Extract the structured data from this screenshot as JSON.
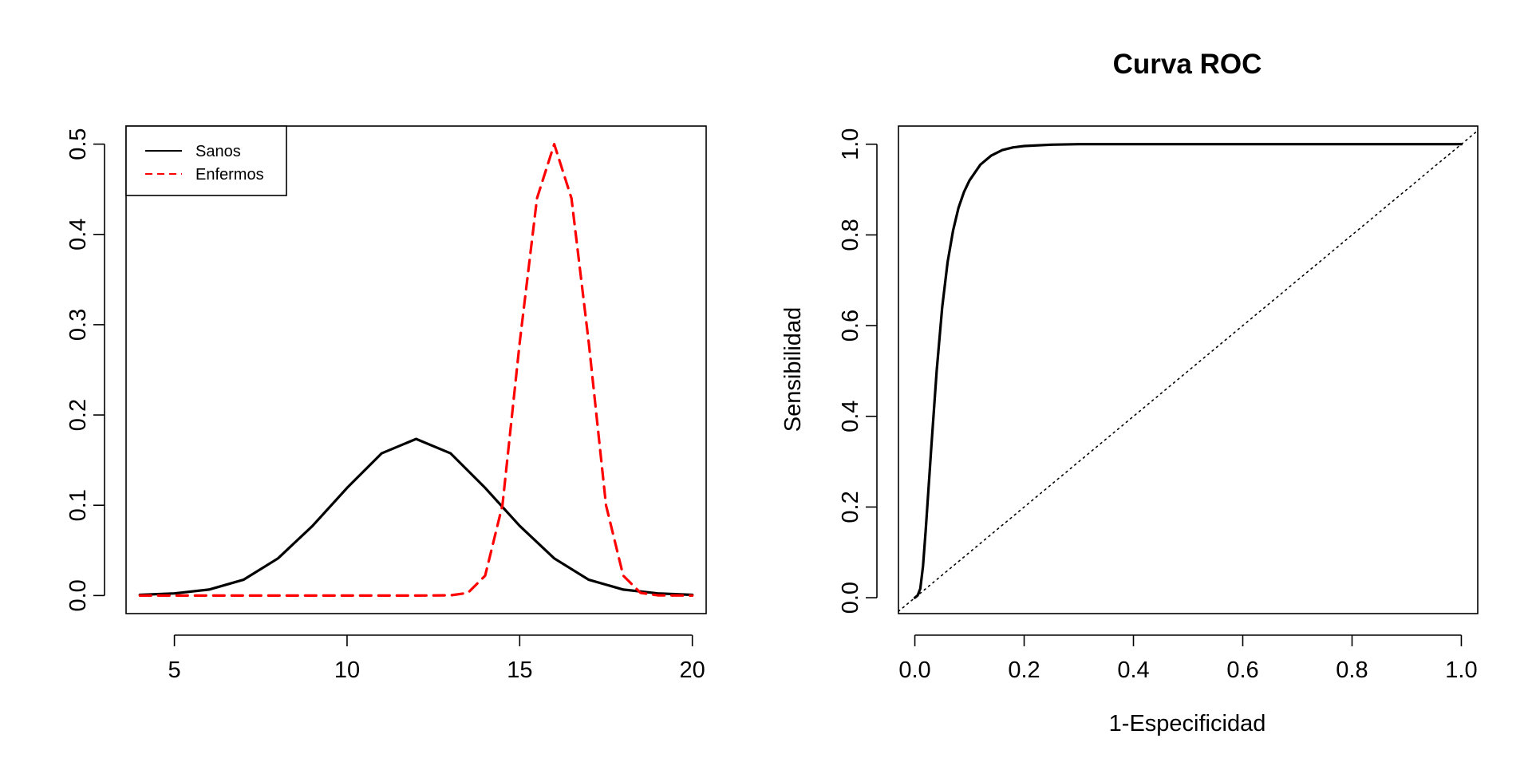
{
  "chart_data": [
    {
      "type": "line",
      "title": "",
      "xlabel": "",
      "ylabel": "",
      "xlim": [
        3.6,
        20.4
      ],
      "ylim": [
        -0.02,
        0.52
      ],
      "x_ticks": [
        5,
        10,
        15,
        20
      ],
      "x_tick_labels": [
        "5",
        "10",
        "15",
        "20"
      ],
      "y_ticks": [
        0,
        0.1,
        0.2,
        0.3,
        0.4,
        0.5
      ],
      "y_tick_labels": [
        "0.0",
        "0.1",
        "0.2",
        "0.3",
        "0.4",
        "0.5"
      ],
      "grid": false,
      "legend": {
        "position": "top-left",
        "entries": [
          "Sanos",
          "Enfermos"
        ]
      },
      "series": [
        {
          "name": "Sanos",
          "color": "#000000",
          "line_style": "solid",
          "x": [
            4,
            5,
            6,
            7,
            8,
            9,
            10,
            11,
            12,
            13,
            14,
            15,
            16,
            17,
            18,
            19,
            20
          ],
          "y": [
            0.0008,
            0.0024,
            0.0066,
            0.0175,
            0.0412,
            0.0771,
            0.1193,
            0.1575,
            0.1735,
            0.1575,
            0.1193,
            0.0771,
            0.0412,
            0.0175,
            0.0066,
            0.0024,
            0.0008
          ]
        },
        {
          "name": "Enfermos",
          "color": "#ff0000",
          "line_style": "dashed",
          "x": [
            4,
            12,
            13,
            13.5,
            14,
            14.5,
            15,
            15.5,
            16,
            16.5,
            17,
            17.5,
            18,
            18.5,
            19,
            20
          ],
          "y": [
            0,
            0,
            0.0002,
            0.003,
            0.022,
            0.1,
            0.28,
            0.44,
            0.5,
            0.44,
            0.28,
            0.1,
            0.022,
            0.003,
            0.0002,
            0
          ]
        }
      ]
    },
    {
      "type": "line",
      "title": "Curva ROC",
      "xlabel": "1-Especificidad",
      "ylabel": "Sensibilidad",
      "xlim": [
        -0.03,
        1.03
      ],
      "ylim": [
        -0.035,
        1.04
      ],
      "x_ticks": [
        0,
        0.2,
        0.4,
        0.6,
        0.8,
        1.0
      ],
      "x_tick_labels": [
        "0.0",
        "0.2",
        "0.4",
        "0.6",
        "0.8",
        "1.0"
      ],
      "y_ticks": [
        0,
        0.2,
        0.4,
        0.6,
        0.8,
        1.0
      ],
      "y_tick_labels": [
        "0.0",
        "0.2",
        "0.4",
        "0.6",
        "0.8",
        "1.0"
      ],
      "grid": false,
      "series": [
        {
          "color": "#000000",
          "line_style": "solid",
          "x": [
            0,
            0.005,
            0.01,
            0.015,
            0.02,
            0.03,
            0.04,
            0.05,
            0.06,
            0.07,
            0.08,
            0.09,
            0.1,
            0.12,
            0.14,
            0.16,
            0.18,
            0.2,
            0.25,
            0.3,
            0.5,
            0.7,
            1.0
          ],
          "y": [
            0,
            0.005,
            0.02,
            0.07,
            0.15,
            0.33,
            0.5,
            0.64,
            0.74,
            0.81,
            0.86,
            0.895,
            0.92,
            0.955,
            0.975,
            0.987,
            0.993,
            0.996,
            0.999,
            1.0,
            1.0,
            1.0,
            1.0
          ]
        },
        {
          "color": "#000000",
          "line_style": "dotted",
          "x": [
            -0.03,
            1.03
          ],
          "y": [
            -0.03,
            1.03
          ]
        }
      ]
    }
  ]
}
